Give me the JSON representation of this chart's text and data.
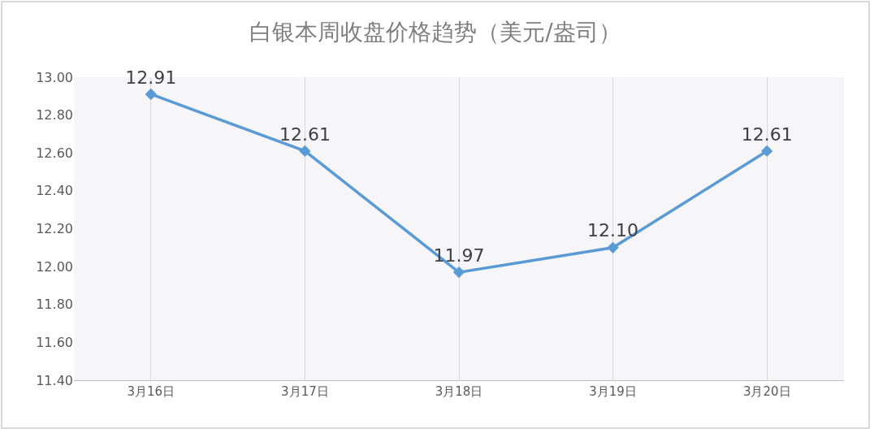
{
  "chart_data": {
    "type": "line",
    "title": "白银本周收盘价格趋势（美元/盎司）",
    "categories": [
      "3月16日",
      "3月17日",
      "3月18日",
      "3月19日",
      "3月20日"
    ],
    "series": [
      {
        "color": "#5b9bd5",
        "values": [
          12.91,
          12.61,
          11.97,
          12.1,
          12.61
        ],
        "value_labels": [
          "12.91",
          "12.61",
          "11.97",
          "12.10",
          "12.61"
        ]
      }
    ],
    "ylim": [
      11.4,
      13.0
    ],
    "yticks": [
      {
        "value": 11.4,
        "label": "11.40"
      },
      {
        "value": 11.6,
        "label": "11.60"
      },
      {
        "value": 11.8,
        "label": "11.80"
      },
      {
        "value": 12.0,
        "label": "12.00"
      },
      {
        "value": 12.2,
        "label": "12.20"
      },
      {
        "value": 12.4,
        "label": "12.40"
      },
      {
        "value": 12.6,
        "label": "12.60"
      },
      {
        "value": 12.8,
        "label": "12.80"
      },
      {
        "value": 13.0,
        "label": "13.00"
      }
    ],
    "grid": "x",
    "marker": "diamond",
    "line_style": "solid"
  }
}
